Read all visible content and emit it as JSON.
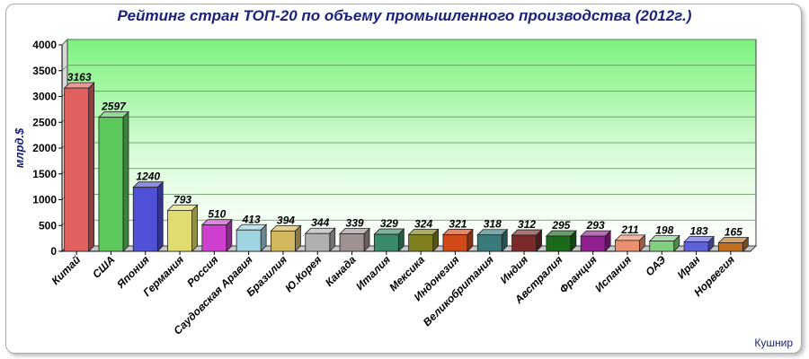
{
  "chart_data": {
    "type": "bar",
    "title": "Рейтинг стран ТОП-20 по объему промышленного производства (2012г.)",
    "xlabel": "",
    "ylabel": "млрд.$",
    "ylim": [
      0,
      4000
    ],
    "yticks": [
      0,
      500,
      1000,
      1500,
      2000,
      2500,
      3000,
      3500,
      4000
    ],
    "grid": true,
    "legend": "none",
    "categories": [
      "Китай",
      "США",
      "Япония",
      "Германия",
      "Россия",
      "Саудовская Аравия",
      "Бразилия",
      "Ю.Корея",
      "Канада",
      "Италия",
      "Мексика",
      "Индонезия",
      "Великобритания",
      "Индия",
      "Австралия",
      "Франция",
      "Испания",
      "ОАЭ",
      "Иран",
      "Норвегия"
    ],
    "values": [
      3163,
      2597,
      1240,
      793,
      510,
      413,
      394,
      344,
      339,
      329,
      324,
      321,
      318,
      312,
      295,
      293,
      211,
      198,
      183,
      165
    ],
    "colors": [
      "#e06060",
      "#5cc85c",
      "#5050d8",
      "#e0dc70",
      "#d040d0",
      "#9fd4e0",
      "#d4b860",
      "#b0b0b0",
      "#a09090",
      "#3a8a6a",
      "#808020",
      "#d04a1a",
      "#3a7a7a",
      "#7a2a2a",
      "#1a6a1a",
      "#902090",
      "#e89070",
      "#80d080",
      "#6060d8",
      "#c07020"
    ],
    "credit": "Кушнир"
  }
}
